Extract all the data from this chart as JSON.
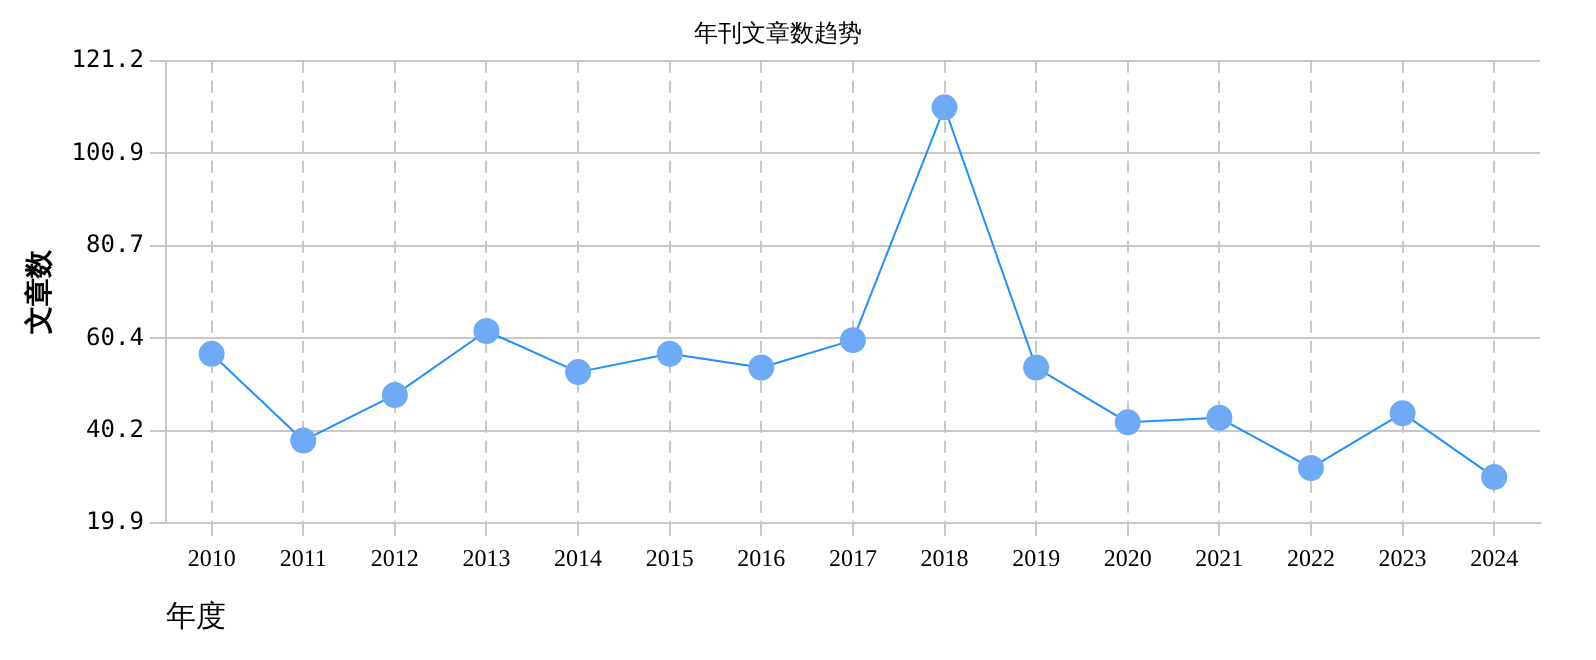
{
  "chart_data": {
    "type": "line",
    "title": "年刊文章数趋势",
    "xlabel": "年度",
    "ylabel": "文章数",
    "categories": [
      "2010",
      "2011",
      "2012",
      "2013",
      "2014",
      "2015",
      "2016",
      "2017",
      "2018",
      "2019",
      "2020",
      "2021",
      "2022",
      "2023",
      "2024"
    ],
    "series": [
      {
        "color": "#1e90ff",
        "values": [
          57,
          38,
          48,
          62,
          53,
          57,
          54,
          60,
          111,
          54,
          42,
          43,
          32,
          44,
          30
        ]
      }
    ],
    "ylim": [
      19.9,
      121.2
    ],
    "yticks": [
      19.9,
      40.2,
      60.4,
      80.7,
      100.9,
      121.2
    ],
    "grid": true,
    "legend": false,
    "marker": "circle",
    "line_style": "solid"
  }
}
